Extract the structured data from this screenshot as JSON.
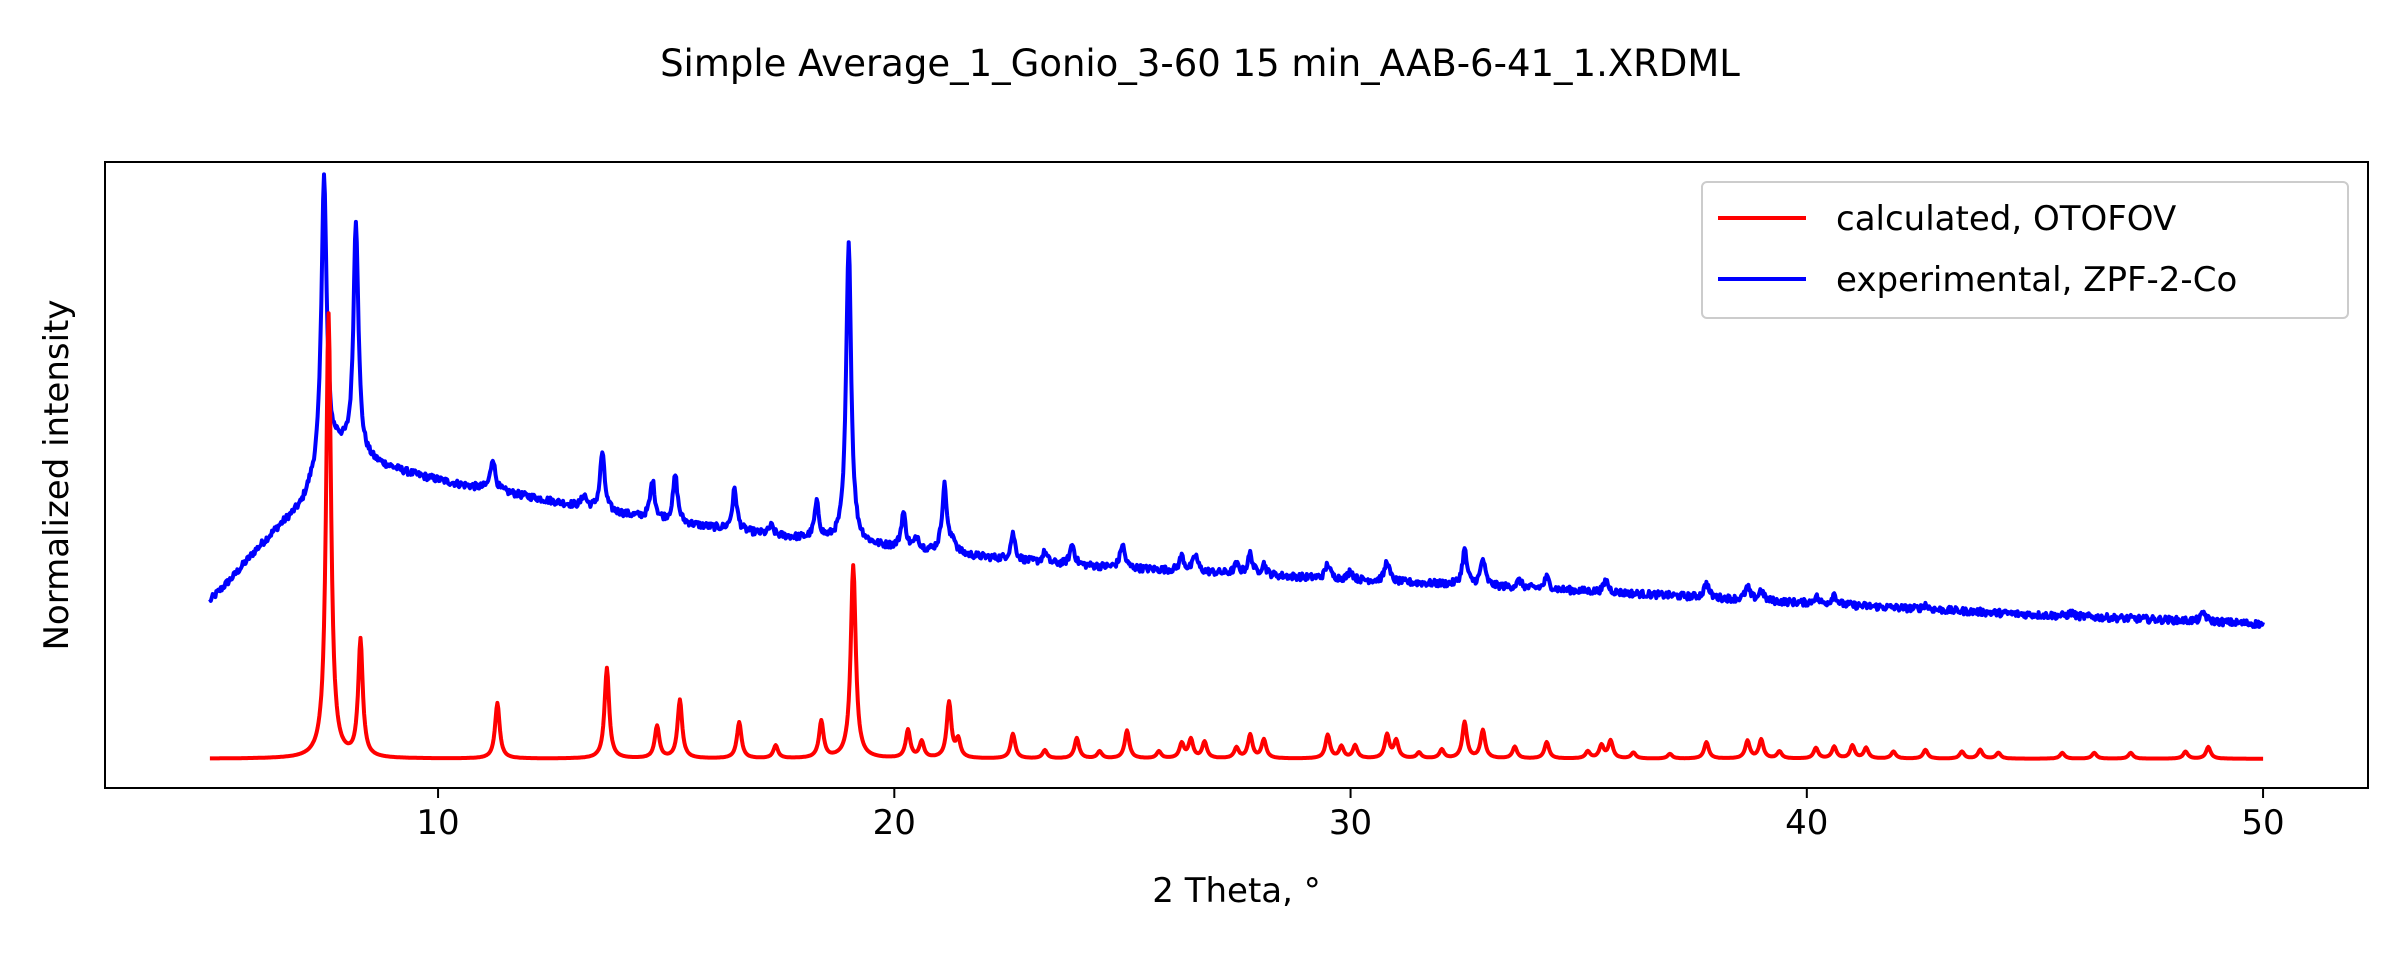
{
  "chart_data": {
    "type": "line",
    "title": "Simple Average_1_Gonio_3-60 15 min_AAB-6-41_1.XRDML",
    "xlabel": "2 Theta, °",
    "ylabel": "Normalized intensity",
    "xlim": [
      2.7,
      52.3
    ],
    "ylim": [
      -0.05,
      1.02
    ],
    "xticks": [
      10,
      20,
      30,
      40,
      50
    ],
    "yticks_shown": false,
    "grid": false,
    "legend_position": "upper right",
    "series": [
      {
        "name": "calculated, OTOFOV",
        "color": "#ff0000",
        "baseline": 0.0,
        "x_range": [
          5.0,
          50.0
        ],
        "peaks": [
          [
            7.6,
            0.76,
            0.065
          ],
          [
            8.3,
            0.2,
            0.06
          ],
          [
            11.3,
            0.095,
            0.06
          ],
          [
            13.7,
            0.155,
            0.06
          ],
          [
            14.8,
            0.055,
            0.06
          ],
          [
            15.3,
            0.1,
            0.06
          ],
          [
            16.6,
            0.062,
            0.06
          ],
          [
            17.4,
            0.022,
            0.06
          ],
          [
            18.4,
            0.063,
            0.06
          ],
          [
            19.1,
            0.33,
            0.065
          ],
          [
            20.3,
            0.048,
            0.06
          ],
          [
            20.6,
            0.028,
            0.06
          ],
          [
            21.2,
            0.095,
            0.06
          ],
          [
            21.4,
            0.03,
            0.06
          ],
          [
            22.6,
            0.042,
            0.06
          ],
          [
            23.3,
            0.014,
            0.06
          ],
          [
            24.0,
            0.035,
            0.06
          ],
          [
            24.5,
            0.012,
            0.06
          ],
          [
            25.1,
            0.048,
            0.06
          ],
          [
            25.8,
            0.012,
            0.06
          ],
          [
            26.3,
            0.025,
            0.06
          ],
          [
            26.5,
            0.032,
            0.06
          ],
          [
            26.8,
            0.028,
            0.06
          ],
          [
            27.5,
            0.018,
            0.06
          ],
          [
            27.8,
            0.04,
            0.06
          ],
          [
            28.1,
            0.032,
            0.06
          ],
          [
            29.5,
            0.04,
            0.06
          ],
          [
            29.8,
            0.02,
            0.06
          ],
          [
            30.1,
            0.022,
            0.06
          ],
          [
            30.8,
            0.04,
            0.06
          ],
          [
            31.0,
            0.03,
            0.06
          ],
          [
            31.5,
            0.01,
            0.06
          ],
          [
            32.0,
            0.015,
            0.06
          ],
          [
            32.5,
            0.062,
            0.06
          ],
          [
            32.9,
            0.048,
            0.06
          ],
          [
            33.6,
            0.02,
            0.06
          ],
          [
            34.3,
            0.028,
            0.06
          ],
          [
            35.2,
            0.012,
            0.06
          ],
          [
            35.5,
            0.022,
            0.06
          ],
          [
            35.7,
            0.03,
            0.06
          ],
          [
            36.2,
            0.01,
            0.06
          ],
          [
            37.0,
            0.008,
            0.06
          ],
          [
            37.8,
            0.028,
            0.06
          ],
          [
            38.7,
            0.03,
            0.06
          ],
          [
            39.0,
            0.032,
            0.06
          ],
          [
            39.4,
            0.012,
            0.06
          ],
          [
            40.2,
            0.018,
            0.06
          ],
          [
            40.6,
            0.02,
            0.06
          ],
          [
            41.0,
            0.022,
            0.06
          ],
          [
            41.3,
            0.018,
            0.06
          ],
          [
            41.9,
            0.012,
            0.06
          ],
          [
            42.6,
            0.015,
            0.06
          ],
          [
            43.4,
            0.012,
            0.06
          ],
          [
            43.8,
            0.015,
            0.06
          ],
          [
            44.2,
            0.01,
            0.06
          ],
          [
            45.6,
            0.01,
            0.06
          ],
          [
            46.3,
            0.01,
            0.06
          ],
          [
            47.1,
            0.01,
            0.06
          ],
          [
            48.3,
            0.012,
            0.06
          ],
          [
            48.8,
            0.02,
            0.06
          ]
        ]
      },
      {
        "name": "experimental, ZPF-2-Co",
        "color": "#0000ff",
        "background": [
          [
            5.0,
            0.27
          ],
          [
            5.5,
            0.31
          ],
          [
            6.0,
            0.355
          ],
          [
            6.5,
            0.395
          ],
          [
            7.0,
            0.43
          ],
          [
            7.2,
            0.46
          ],
          [
            7.8,
            0.53
          ],
          [
            8.6,
            0.505
          ],
          [
            9.5,
            0.485
          ],
          [
            10.5,
            0.468
          ],
          [
            11.5,
            0.455
          ],
          [
            12.5,
            0.44
          ],
          [
            13.5,
            0.425
          ],
          [
            14.5,
            0.412
          ],
          [
            15.5,
            0.4
          ],
          [
            16.5,
            0.39
          ],
          [
            17.5,
            0.38
          ],
          [
            18.5,
            0.372
          ],
          [
            19.5,
            0.364
          ],
          [
            20.5,
            0.356
          ],
          [
            21.5,
            0.348
          ],
          [
            22.5,
            0.34
          ],
          [
            23.5,
            0.333
          ],
          [
            25.0,
            0.326
          ],
          [
            27.0,
            0.318
          ],
          [
            29.0,
            0.31
          ],
          [
            31.0,
            0.302
          ],
          [
            33.0,
            0.295
          ],
          [
            35.0,
            0.287
          ],
          [
            37.0,
            0.279
          ],
          [
            39.0,
            0.27
          ],
          [
            41.0,
            0.262
          ],
          [
            43.0,
            0.254
          ],
          [
            45.0,
            0.246
          ],
          [
            47.0,
            0.24
          ],
          [
            49.0,
            0.234
          ],
          [
            50.0,
            0.23
          ]
        ],
        "peaks": [
          [
            7.5,
            0.5,
            0.07
          ],
          [
            8.2,
            0.4,
            0.065
          ],
          [
            11.2,
            0.055,
            0.06
          ],
          [
            13.2,
            0.02,
            0.06
          ],
          [
            13.6,
            0.1,
            0.06
          ],
          [
            14.7,
            0.065,
            0.06
          ],
          [
            15.2,
            0.08,
            0.06
          ],
          [
            16.5,
            0.07,
            0.06
          ],
          [
            17.3,
            0.015,
            0.06
          ],
          [
            18.3,
            0.06,
            0.06
          ],
          [
            19.0,
            0.52,
            0.065
          ],
          [
            20.2,
            0.06,
            0.06
          ],
          [
            20.5,
            0.02,
            0.06
          ],
          [
            21.1,
            0.115,
            0.065
          ],
          [
            21.3,
            0.02,
            0.06
          ],
          [
            22.6,
            0.045,
            0.06
          ],
          [
            23.3,
            0.018,
            0.06
          ],
          [
            23.9,
            0.035,
            0.06
          ],
          [
            25.0,
            0.04,
            0.06
          ],
          [
            26.3,
            0.025,
            0.06
          ],
          [
            26.6,
            0.028,
            0.06
          ],
          [
            27.5,
            0.015,
            0.06
          ],
          [
            27.8,
            0.035,
            0.06
          ],
          [
            28.1,
            0.018,
            0.06
          ],
          [
            29.5,
            0.025,
            0.06
          ],
          [
            30.0,
            0.015,
            0.06
          ],
          [
            30.8,
            0.035,
            0.06
          ],
          [
            32.5,
            0.06,
            0.06
          ],
          [
            32.9,
            0.045,
            0.06
          ],
          [
            33.7,
            0.012,
            0.06
          ],
          [
            34.3,
            0.02,
            0.06
          ],
          [
            35.6,
            0.02,
            0.06
          ],
          [
            37.8,
            0.025,
            0.06
          ],
          [
            38.7,
            0.022,
            0.06
          ],
          [
            39.0,
            0.018,
            0.06
          ],
          [
            40.2,
            0.012,
            0.06
          ],
          [
            40.6,
            0.018,
            0.06
          ],
          [
            42.6,
            0.008,
            0.06
          ],
          [
            45.8,
            0.006,
            0.06
          ],
          [
            48.7,
            0.015,
            0.06
          ]
        ],
        "noise_amplitude": 0.006
      }
    ]
  }
}
